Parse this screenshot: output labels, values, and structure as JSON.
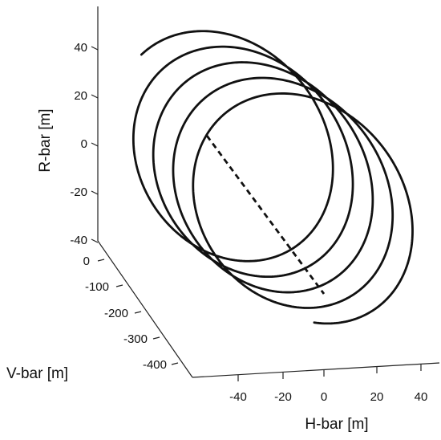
{
  "chart_data": {
    "type": "line",
    "projection": "3d",
    "title": "",
    "axes": {
      "x": {
        "label": "H-bar [m]",
        "ticks": [
          -40,
          -20,
          0,
          20,
          40
        ],
        "range": [
          -50,
          50
        ]
      },
      "y": {
        "label": "V-bar [m]",
        "ticks": [
          0,
          -100,
          -200,
          -300,
          -400
        ],
        "range": [
          -480,
          20
        ]
      },
      "z": {
        "label": "R-bar [m]",
        "ticks": [
          40,
          20,
          0,
          -20,
          -40
        ],
        "range": [
          -45,
          55
        ]
      }
    },
    "series": [
      {
        "style": "solid",
        "description_points": "helical trajectory, ~5 revolutions, radius ~40 m in H/R plane, advancing along V-bar from about 0 m to about -420 m",
        "points": [
          {
            "h": -8,
            "v": 0,
            "r": 45
          },
          {
            "h": 34,
            "v": -430,
            "r": 22
          }
        ]
      },
      {
        "style": "dashed",
        "points": [
          {
            "h": -40,
            "v": -10,
            "r": 0
          },
          {
            "h": 0,
            "v": -430,
            "r": -15
          }
        ]
      }
    ]
  }
}
